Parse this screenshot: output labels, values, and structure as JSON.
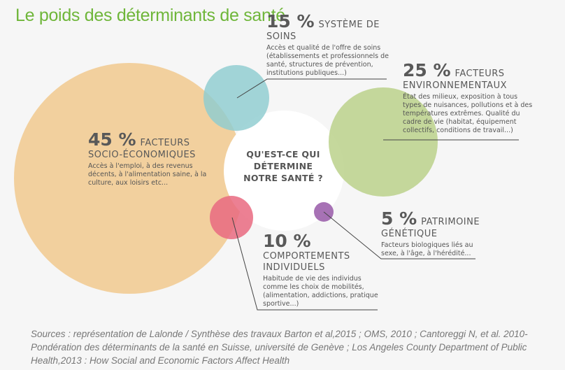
{
  "title": "Le poids des déterminants de santé",
  "center_question": "QU'EST-CE QUI DÉTERMINE NOTRE SANTÉ ?",
  "determinants": [
    {
      "percent": "15 %",
      "head_first": "SYSTÈME DE",
      "head_rest": "SOINS",
      "description": "Accès et qualité de l'offre de soins (établissements et professionnels de santé, structures de prévention, institutions publiques...)",
      "color": "#8ecccf"
    },
    {
      "percent": "25 %",
      "head_first": "FACTEURS",
      "head_rest": "ENVIRONNEMENTAUX",
      "description": "État des milieux, exposition à tous types de nuisances, pollutions et à des températures extrêmes. Qualité du cadre de vie (habitat, équipement collectifs, conditions de travail...)",
      "color": "#bfd491"
    },
    {
      "percent": "45 %",
      "head_first": "FACTEURS",
      "head_rest": "SOCIO-ÉCONOMIQUES",
      "description": "Accès à l'emploi, à des revenus décents, à l'alimentation saine, à la culture, aux loisirs etc...",
      "color": "#f2cc95"
    },
    {
      "percent": "10 %",
      "head_first": "",
      "head_rest": "COMPORTEMENTS INDIVIDUELS",
      "description": "Habitude de vie des individus comme les choix de mobilités, (alimentation, addictions, pratique sportive...)",
      "color": "#e96a80"
    },
    {
      "percent": "5 %",
      "head_first": "PATRIMOINE",
      "head_rest": "GÉNÉTIQUE",
      "description": "Facteurs biologiques liés au sexe, à l'âge, à l'hérédité...",
      "color": "#9d63ad"
    }
  ],
  "sources": "Sources : représentation de Lalonde / Synthèse des travaux Barton et al,2015 ; OMS, 2010 ; Cantoreggi N, et al. 2010- Pondération des déterminants de la santé en Suisse, université de Genève ; Los Angeles County Department of Public Health,2013 : How Social and Economic Factors Affect Health"
}
